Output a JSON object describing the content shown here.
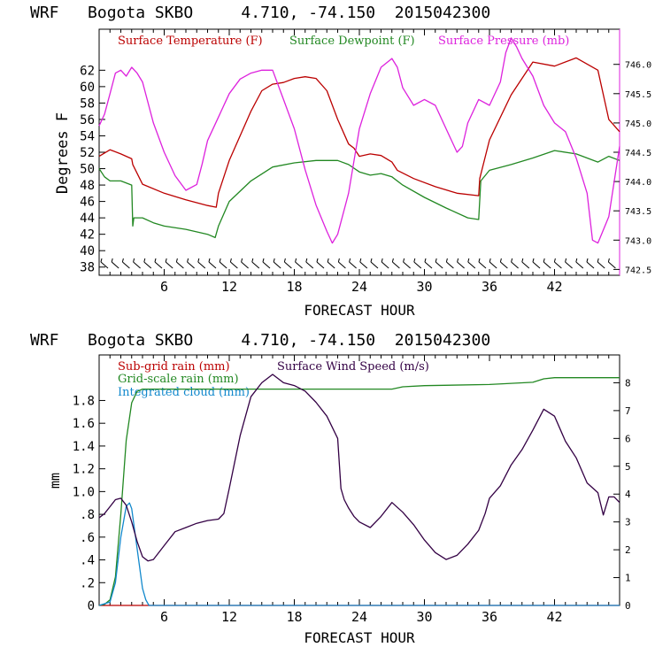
{
  "chart_data": [
    {
      "type": "line",
      "title": "WRF   Bogota SKBO     4.710, -74.150  2015042300",
      "xlabel": "FORECAST HOUR",
      "ylabel": "Degrees F",
      "xlim": [
        0,
        48
      ],
      "ylim": [
        37,
        67
      ],
      "y2lim": [
        742.4,
        746.6
      ],
      "x_ticks": [
        6,
        12,
        18,
        24,
        30,
        36,
        42
      ],
      "y_ticks": [
        38,
        40,
        42,
        44,
        46,
        48,
        50,
        52,
        54,
        56,
        58,
        60,
        62
      ],
      "y2_ticks": [
        742.5,
        743.0,
        743.5,
        744.0,
        744.5,
        745.0,
        745.5,
        746.0
      ],
      "y2_tick_labels": [
        "742.5",
        "743.0",
        "743.5",
        "744.0",
        "744.5",
        "745.0",
        "745.5",
        "746.0"
      ],
      "legend": [
        "Surface Temperature (F)",
        "Surface Dewpoint (F)",
        "Surface Pressure (mb)"
      ],
      "colors": [
        "#bb0000",
        "#228822",
        "#dd22dd"
      ],
      "series": [
        {
          "name": "Surface Temperature (F)",
          "axis": "left",
          "x": [
            0,
            1,
            2,
            3,
            3.1,
            4,
            6,
            8,
            10,
            10.8,
            11,
            12,
            14,
            15,
            16,
            17,
            18,
            19,
            20,
            21,
            22,
            23,
            23.5,
            24,
            25,
            26,
            27,
            27.5,
            29,
            31,
            33,
            35,
            35.1,
            36,
            38,
            40,
            42,
            44,
            46,
            47,
            48
          ],
          "y": [
            51.5,
            52.3,
            51.8,
            51.2,
            50.5,
            48.1,
            47.0,
            46.2,
            45.5,
            45.3,
            47.0,
            51.0,
            57.0,
            59.5,
            60.3,
            60.5,
            61.0,
            61.2,
            61.0,
            59.5,
            56.0,
            53.0,
            52.5,
            51.5,
            51.8,
            51.6,
            50.8,
            49.8,
            48.8,
            47.8,
            47.0,
            46.7,
            48.8,
            53.5,
            59.0,
            63.0,
            62.5,
            63.5,
            62.0,
            56.0,
            54.5
          ]
        },
        {
          "name": "Surface Dewpoint (F)",
          "axis": "left",
          "x": [
            0,
            0.5,
            1,
            2,
            3,
            3.1,
            3.2,
            4,
            5,
            6,
            8,
            10,
            10.7,
            11,
            12,
            14,
            16,
            18,
            20,
            22,
            23,
            24,
            25,
            26,
            27,
            28,
            30,
            32,
            34,
            35,
            35.2,
            36,
            38,
            40,
            42,
            44,
            46,
            47,
            48
          ],
          "y": [
            50.0,
            49.0,
            48.5,
            48.5,
            48.0,
            43.0,
            44.0,
            44.0,
            43.4,
            43.0,
            42.6,
            42.0,
            41.6,
            43.0,
            46.0,
            48.5,
            50.2,
            50.7,
            51.0,
            51.0,
            50.5,
            49.6,
            49.2,
            49.4,
            49.0,
            48.0,
            46.5,
            45.2,
            44.0,
            43.8,
            48.5,
            49.8,
            50.5,
            51.3,
            52.2,
            51.8,
            50.8,
            51.5,
            51.0
          ]
        },
        {
          "name": "Surface Pressure (mb)",
          "axis": "right",
          "x": [
            0,
            0.5,
            1,
            1.5,
            2,
            2.5,
            3,
            3.5,
            4,
            5,
            6,
            7,
            8,
            9,
            9.5,
            10,
            11,
            12,
            13,
            14,
            15,
            16,
            17,
            18,
            19,
            20,
            21,
            21.5,
            22,
            23,
            24,
            25,
            26,
            27,
            27.5,
            28,
            29,
            30,
            31,
            32,
            33,
            33.5,
            34,
            35,
            36,
            37,
            37.5,
            38,
            38.5,
            39,
            40,
            41,
            42,
            43,
            44,
            45,
            45.5,
            46,
            47,
            48
          ],
          "y": [
            744.95,
            745.15,
            745.5,
            745.85,
            745.9,
            745.8,
            745.95,
            745.85,
            745.7,
            745.0,
            744.5,
            744.1,
            743.85,
            743.95,
            744.3,
            744.7,
            745.1,
            745.5,
            745.75,
            745.85,
            745.9,
            745.9,
            745.4,
            744.9,
            744.2,
            743.6,
            743.15,
            742.95,
            743.1,
            743.8,
            744.9,
            745.5,
            745.95,
            746.1,
            745.95,
            745.6,
            745.3,
            745.4,
            745.3,
            744.9,
            744.5,
            744.6,
            745.0,
            745.4,
            745.3,
            745.7,
            746.2,
            746.45,
            746.3,
            746.1,
            745.8,
            745.3,
            745.0,
            744.85,
            744.4,
            743.8,
            743.0,
            742.95,
            743.4,
            744.6
          ]
        }
      ]
    },
    {
      "type": "line",
      "title": "WRF   Bogota SKBO     4.710, -74.150  2015042300",
      "xlabel": "FORECAST HOUR",
      "ylabel": "mm",
      "xlim": [
        0,
        48
      ],
      "ylim": [
        0,
        2.2
      ],
      "y2lim": [
        0,
        9
      ],
      "x_ticks": [
        6,
        12,
        18,
        24,
        30,
        36,
        42
      ],
      "y_ticks": [
        0,
        0.2,
        0.4,
        0.6,
        0.8,
        1.0,
        1.2,
        1.4,
        1.6,
        1.8
      ],
      "y_tick_labels": [
        "0",
        ".2",
        ".4",
        ".6",
        ".8",
        "1.0",
        "1.2",
        "1.4",
        "1.6",
        "1.8"
      ],
      "y2_ticks": [
        0,
        1,
        2,
        3,
        4,
        5,
        6,
        7,
        8
      ],
      "y2_tick_labels": [
        "0",
        "1",
        "2",
        "3",
        "4",
        "5",
        "6",
        "7",
        "8"
      ],
      "legend": [
        "Sub-grid rain (mm)",
        "Grid-scale rain (mm)",
        "Integrated cloud (mm)",
        "Surface Wind Speed (m/s)"
      ],
      "colors": [
        "#bb0000",
        "#228822",
        "#1188cc",
        "#330044"
      ],
      "series": [
        {
          "name": "Sub-grid rain (mm)",
          "axis": "left",
          "x": [
            0,
            48
          ],
          "y": [
            0,
            0
          ]
        },
        {
          "name": "Grid-scale rain (mm)",
          "axis": "left",
          "x": [
            0,
            0.5,
            1,
            1.5,
            2,
            2.5,
            3,
            3.5,
            4,
            4.5,
            5,
            8,
            12,
            16,
            20,
            24,
            27,
            28,
            30,
            36,
            40,
            41,
            42,
            44,
            46,
            48
          ],
          "y": [
            0,
            0.01,
            0.05,
            0.25,
            0.8,
            1.45,
            1.78,
            1.88,
            1.9,
            1.9,
            1.9,
            1.9,
            1.9,
            1.9,
            1.9,
            1.9,
            1.9,
            1.92,
            1.93,
            1.94,
            1.96,
            1.99,
            2.0,
            2.0,
            2.0,
            2.0
          ]
        },
        {
          "name": "Integrated cloud (mm)",
          "axis": "left",
          "x": [
            0,
            1,
            1.5,
            2,
            2.5,
            2.8,
            3.0,
            3.5,
            4,
            4.3,
            4.6,
            5,
            48
          ],
          "y": [
            0,
            0.03,
            0.2,
            0.6,
            0.87,
            0.9,
            0.85,
            0.5,
            0.15,
            0.05,
            0.0,
            0,
            0
          ]
        },
        {
          "name": "Surface Wind Speed (m/s)",
          "axis": "right",
          "x": [
            0,
            0.5,
            1,
            1.5,
            2,
            2.5,
            3,
            3.5,
            4,
            4.5,
            5,
            6,
            7,
            8,
            9,
            10,
            11,
            11.5,
            12,
            13,
            14,
            15,
            16,
            17,
            18,
            19,
            20,
            21,
            22,
            22.3,
            22.6,
            23,
            23.5,
            24,
            25,
            26,
            27,
            28,
            29,
            30,
            31,
            32,
            33,
            34,
            35,
            35.6,
            36,
            37,
            38,
            39,
            40,
            41,
            42,
            43,
            44,
            45,
            46,
            46.5,
            47,
            47.5,
            48
          ],
          "y": [
            3.15,
            3.3,
            3.55,
            3.8,
            3.85,
            3.6,
            3.0,
            2.3,
            1.75,
            1.6,
            1.65,
            2.15,
            2.65,
            2.8,
            2.95,
            3.05,
            3.1,
            3.3,
            4.2,
            6.1,
            7.5,
            8.0,
            8.3,
            8.0,
            7.9,
            7.7,
            7.3,
            6.8,
            6.0,
            4.2,
            3.8,
            3.5,
            3.2,
            3.0,
            2.8,
            3.2,
            3.7,
            3.35,
            2.9,
            2.35,
            1.9,
            1.65,
            1.8,
            2.2,
            2.7,
            3.3,
            3.85,
            4.3,
            5.05,
            5.6,
            6.3,
            7.05,
            6.8,
            5.9,
            5.3,
            4.4,
            4.05,
            3.25,
            3.9,
            3.9,
            3.7
          ]
        }
      ]
    }
  ]
}
